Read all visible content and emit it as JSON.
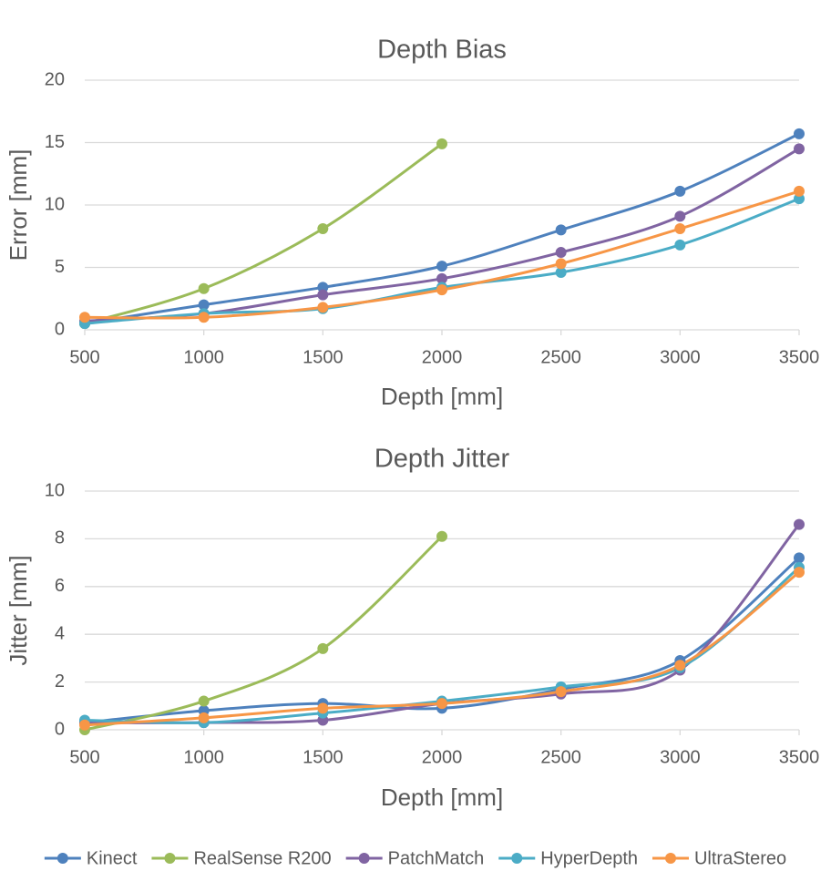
{
  "chart_data": [
    {
      "type": "line",
      "title": "Depth Bias",
      "x_label": "Depth [mm]",
      "y_label": "Error [mm]",
      "x": [
        500,
        1000,
        1500,
        2000,
        2500,
        3000,
        3500
      ],
      "xlim": [
        500,
        3500
      ],
      "xticks": [
        500,
        1000,
        1500,
        2000,
        2500,
        3000,
        3500
      ],
      "ylim": [
        0,
        20
      ],
      "yticks": [
        0,
        5,
        10,
        15,
        20
      ],
      "grid": true,
      "smooth": true,
      "series": [
        {
          "name": "Kinect",
          "color": "#4e81bd",
          "values": [
            0.5,
            2.0,
            3.4,
            5.1,
            8.0,
            11.1,
            15.7
          ]
        },
        {
          "name": "RealSense R200",
          "color": "#9bbb59",
          "values": [
            0.5,
            3.3,
            8.1,
            14.9,
            null,
            null,
            null
          ]
        },
        {
          "name": "PatchMatch",
          "color": "#8064a2",
          "values": [
            0.7,
            1.3,
            2.8,
            4.1,
            6.2,
            9.1,
            14.5
          ]
        },
        {
          "name": "HyperDepth",
          "color": "#4bacc6",
          "values": [
            0.5,
            1.3,
            1.7,
            3.4,
            4.6,
            6.8,
            10.5
          ]
        },
        {
          "name": "UltraStereo",
          "color": "#f79646",
          "values": [
            1.0,
            1.0,
            1.8,
            3.2,
            5.3,
            8.1,
            11.1
          ]
        }
      ],
      "legend": "bottom"
    },
    {
      "type": "line",
      "title": "Depth Jitter",
      "x_label": "Depth [mm]",
      "y_label": "Jitter [mm]",
      "x": [
        500,
        1000,
        1500,
        2000,
        2500,
        3000,
        3500
      ],
      "xlim": [
        500,
        3500
      ],
      "xticks": [
        500,
        1000,
        1500,
        2000,
        2500,
        3000,
        3500
      ],
      "ylim": [
        0,
        10
      ],
      "yticks": [
        0,
        2,
        4,
        6,
        8,
        10
      ],
      "grid": true,
      "smooth": true,
      "series": [
        {
          "name": "Kinect",
          "color": "#4e81bd",
          "values": [
            0.3,
            0.8,
            1.1,
            0.9,
            1.7,
            2.9,
            7.2
          ]
        },
        {
          "name": "RealSense R200",
          "color": "#9bbb59",
          "values": [
            0.0,
            1.2,
            3.4,
            8.1,
            null,
            null,
            null
          ]
        },
        {
          "name": "PatchMatch",
          "color": "#8064a2",
          "values": [
            0.3,
            0.3,
            0.4,
            1.1,
            1.5,
            2.5,
            8.6
          ]
        },
        {
          "name": "HyperDepth",
          "color": "#4bacc6",
          "values": [
            0.4,
            0.3,
            0.7,
            1.2,
            1.8,
            2.6,
            6.8
          ]
        },
        {
          "name": "UltraStereo",
          "color": "#f79646",
          "values": [
            0.2,
            0.5,
            0.9,
            1.1,
            1.6,
            2.7,
            6.6
          ]
        }
      ]
    }
  ]
}
